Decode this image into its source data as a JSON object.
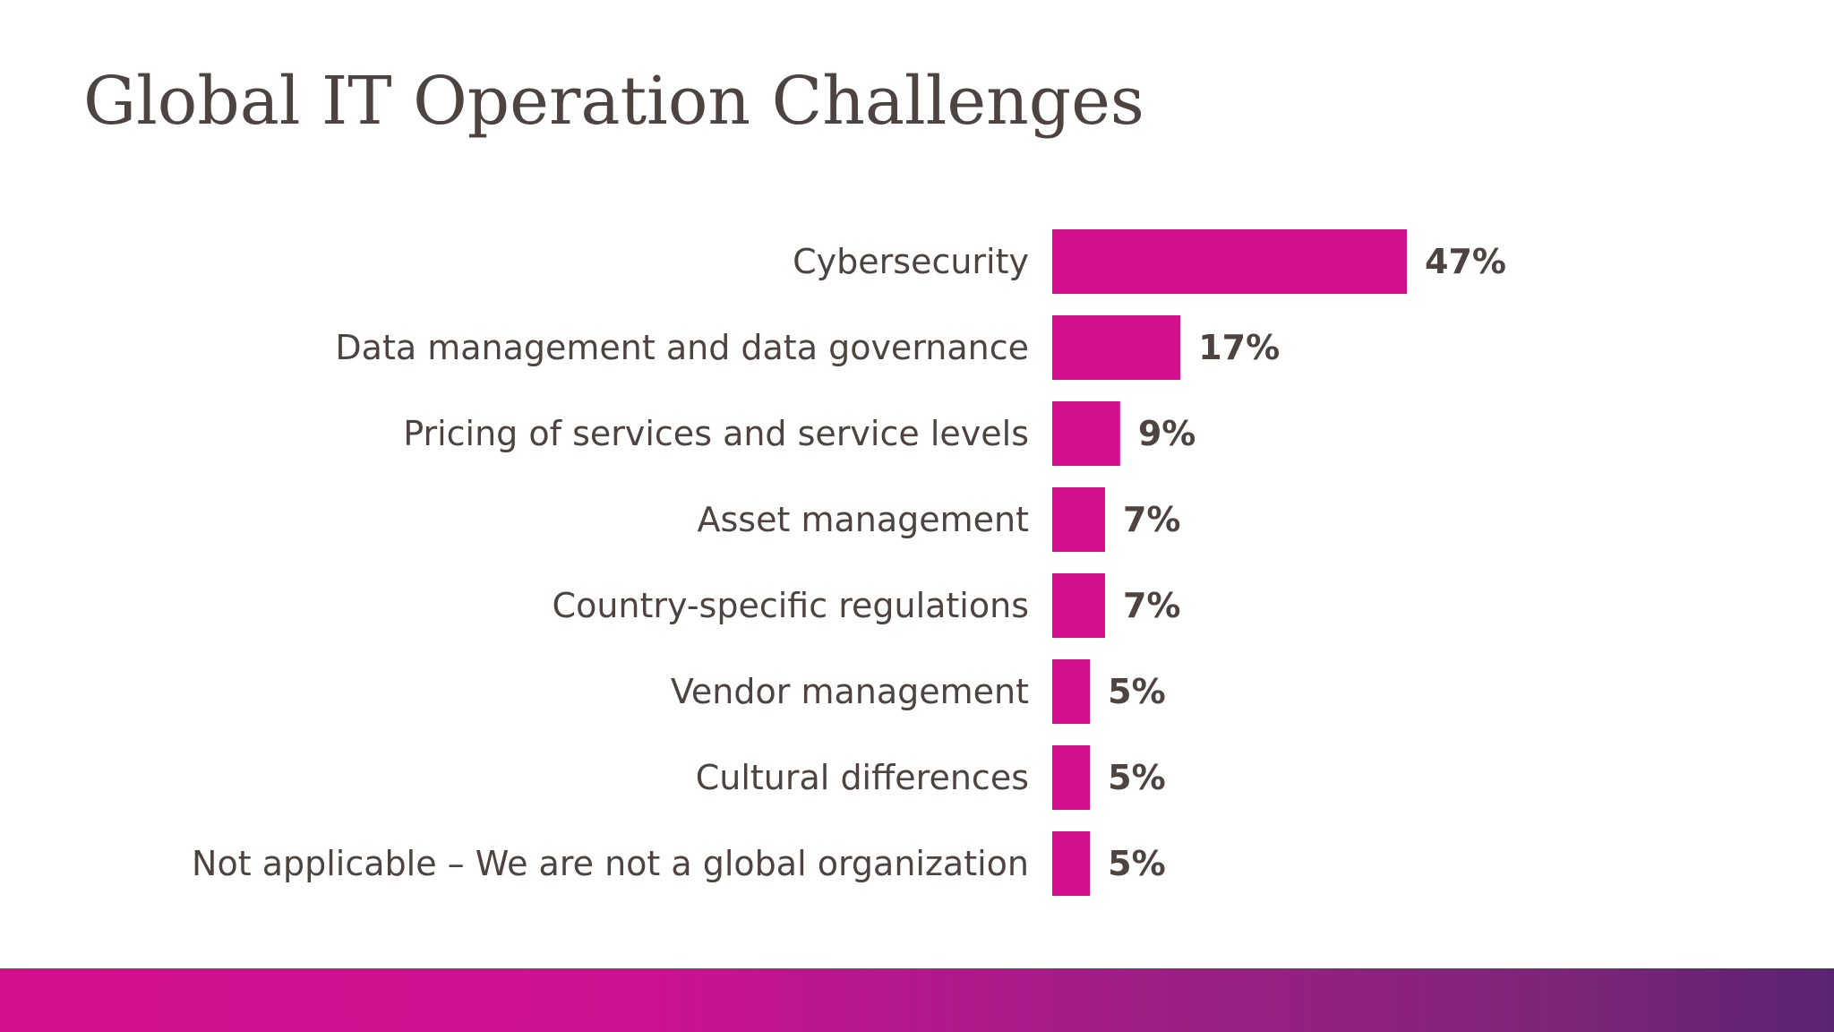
{
  "slide": {
    "title": "Global IT Operation Challenges"
  },
  "colors": {
    "bar": "#d30f8c",
    "text": "#4d4340",
    "band_start": "#d30f8c",
    "band_end": "#5a2472"
  },
  "chart_data": {
    "type": "bar",
    "orientation": "horizontal",
    "title": "Global IT Operation Challenges",
    "categories": [
      "Cybersecurity",
      "Data management and data governance",
      "Pricing of services and service levels",
      "Asset management",
      "Country-specific regulations",
      "Vendor management",
      "Cultural differences",
      "Not applicable – We are not a global organization"
    ],
    "values": [
      47,
      17,
      9,
      7,
      7,
      5,
      5,
      5
    ],
    "value_labels": [
      "47%",
      "17%",
      "9%",
      "7%",
      "7%",
      "5%",
      "5%",
      "5%"
    ],
    "unit": "%",
    "xlabel": "",
    "ylabel": "",
    "xlim": [
      0,
      47
    ],
    "grid": false,
    "legend": "none"
  }
}
